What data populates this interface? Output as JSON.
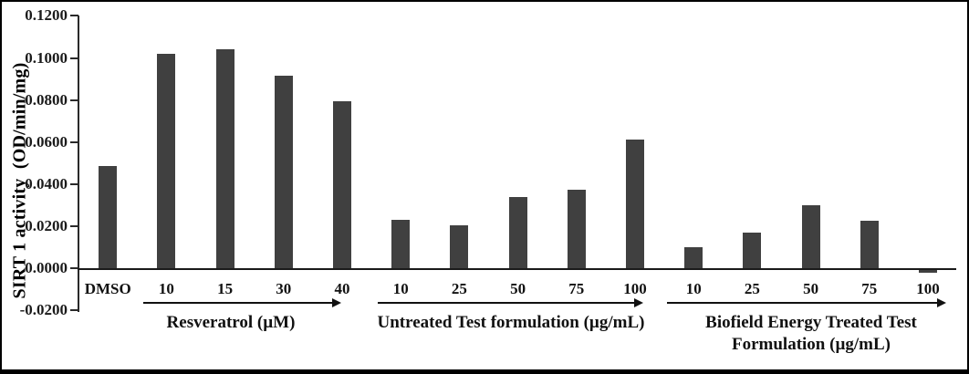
{
  "chart_data": {
    "type": "bar",
    "title": "",
    "xlabel": "",
    "ylabel": "SIRT 1 activity  (OD/min/mg)",
    "ylim": [
      -0.02,
      0.12
    ],
    "grid": false,
    "legend": null,
    "bar_color": "#404040",
    "y_ticks": [
      0.12,
      0.1,
      0.08,
      0.06,
      0.04,
      0.02,
      0.0,
      -0.02
    ],
    "y_tick_labels": [
      "0.1200",
      "0.1000",
      "0.0800",
      "0.0600",
      "0.0400",
      "0.0200",
      "0.0000",
      "-0.0200"
    ],
    "categories": [
      "DMSO",
      "10",
      "15",
      "30",
      "40",
      "10",
      "25",
      "50",
      "75",
      "100",
      "10",
      "25",
      "50",
      "75",
      "100"
    ],
    "values": [
      0.0485,
      0.102,
      0.104,
      0.0915,
      0.0795,
      0.023,
      0.0205,
      0.034,
      0.0375,
      0.061,
      0.01,
      0.017,
      0.03,
      0.0225,
      -0.0015
    ],
    "groups": [
      {
        "label": "Resveratrol (µM)",
        "label_lines": [
          "Resveratrol (µM)"
        ],
        "categories": [
          "10",
          "15",
          "30",
          "40"
        ]
      },
      {
        "label": "Untreated Test formulation (µg/mL)",
        "label_lines": [
          "Untreated Test formulation (µg/mL)"
        ],
        "categories": [
          "10",
          "25",
          "50",
          "75",
          "100"
        ]
      },
      {
        "label": "Biofield Energy Treated Test Formulation (µg/mL)",
        "label_lines": [
          "Biofield Energy Treated Test",
          "Formulation (µg/mL)"
        ],
        "categories": [
          "10",
          "25",
          "50",
          "75",
          "100"
        ]
      }
    ]
  }
}
